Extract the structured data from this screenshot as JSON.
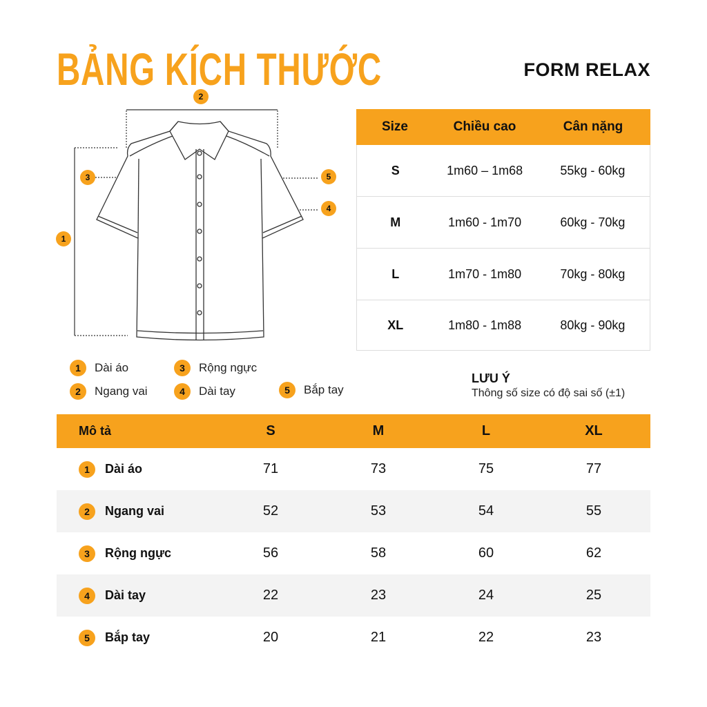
{
  "title": "BẢNG KÍCH THƯỚC",
  "form": "FORM RELAX",
  "size_table": {
    "headers": [
      "Size",
      "Chiều cao",
      "Cân nặng"
    ],
    "rows": [
      [
        "S",
        "1m60 – 1m68",
        "55kg - 60kg"
      ],
      [
        "M",
        "1m60 - 1m70",
        "60kg - 70kg"
      ],
      [
        "L",
        "1m70 - 1m80",
        "70kg - 80kg"
      ],
      [
        "XL",
        "1m80 - 1m88",
        "80kg - 90kg"
      ]
    ]
  },
  "legend": [
    {
      "n": "1",
      "label": "Dài áo"
    },
    {
      "n": "2",
      "label": "Ngang vai"
    },
    {
      "n": "3",
      "label": "Rộng ngực"
    },
    {
      "n": "4",
      "label": "Dài tay"
    },
    {
      "n": "5",
      "label": "Bắp tay"
    }
  ],
  "note": {
    "title": "LƯU Ý",
    "text": "Thông số size có độ sai số (±1)"
  },
  "measure_table": {
    "headers": [
      "Mô tả",
      "S",
      "M",
      "L",
      "XL"
    ],
    "rows": [
      {
        "n": "1",
        "label": "Dài áo",
        "values": [
          "71",
          "73",
          "75",
          "77"
        ]
      },
      {
        "n": "2",
        "label": "Ngang vai",
        "values": [
          "52",
          "53",
          "54",
          "55"
        ]
      },
      {
        "n": "3",
        "label": "Rộng ngực",
        "values": [
          "56",
          "58",
          "60",
          "62"
        ]
      },
      {
        "n": "4",
        "label": "Dài tay",
        "values": [
          "22",
          "23",
          "24",
          "25"
        ]
      },
      {
        "n": "5",
        "label": "Bắp tay",
        "values": [
          "20",
          "21",
          "22",
          "23"
        ]
      }
    ]
  },
  "colors": {
    "accent": "#F7A21D",
    "alt_row": "#f3f3f3"
  }
}
